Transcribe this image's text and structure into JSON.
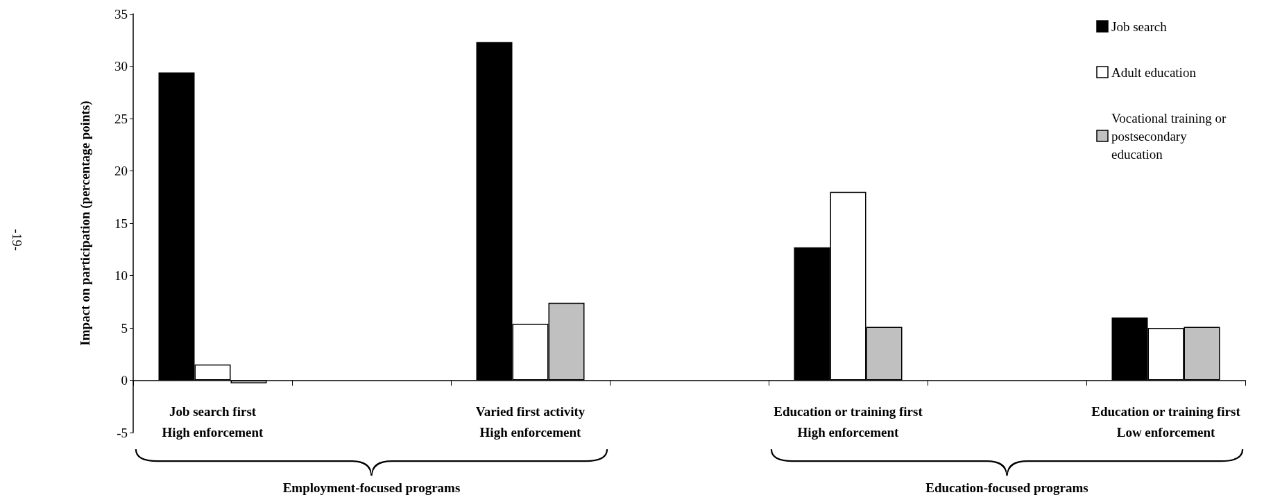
{
  "chart_data": {
    "type": "bar",
    "ylabel": "Impact on participation (percentage points)",
    "categories": [
      "Job search first\nHigh enforcement",
      null,
      "Varied first activity\nHigh enforcement",
      null,
      "Education or training first\nHigh enforcement",
      null,
      "Education or training first\nLow enforcement"
    ],
    "series": [
      {
        "name": "Job search",
        "color": "#000000",
        "values": [
          29.4,
          null,
          32.3,
          null,
          12.7,
          null,
          6.0
        ]
      },
      {
        "name": "Adult education",
        "color": "#ffffff",
        "values": [
          1.5,
          null,
          5.4,
          null,
          18.0,
          null,
          5.0
        ]
      },
      {
        "name": "Vocational training or postsecondary education",
        "color": "#c0c0c0",
        "values": [
          -0.3,
          null,
          7.4,
          null,
          5.1,
          null,
          5.1
        ]
      }
    ],
    "ylim": [
      -5,
      35
    ],
    "yticks": [
      -5,
      0,
      5,
      10,
      15,
      20,
      25,
      30,
      35
    ],
    "grid": false,
    "legend": "top right",
    "annotations": [
      "Employment-focused programs",
      "Education-focused programs",
      "-19-"
    ]
  }
}
